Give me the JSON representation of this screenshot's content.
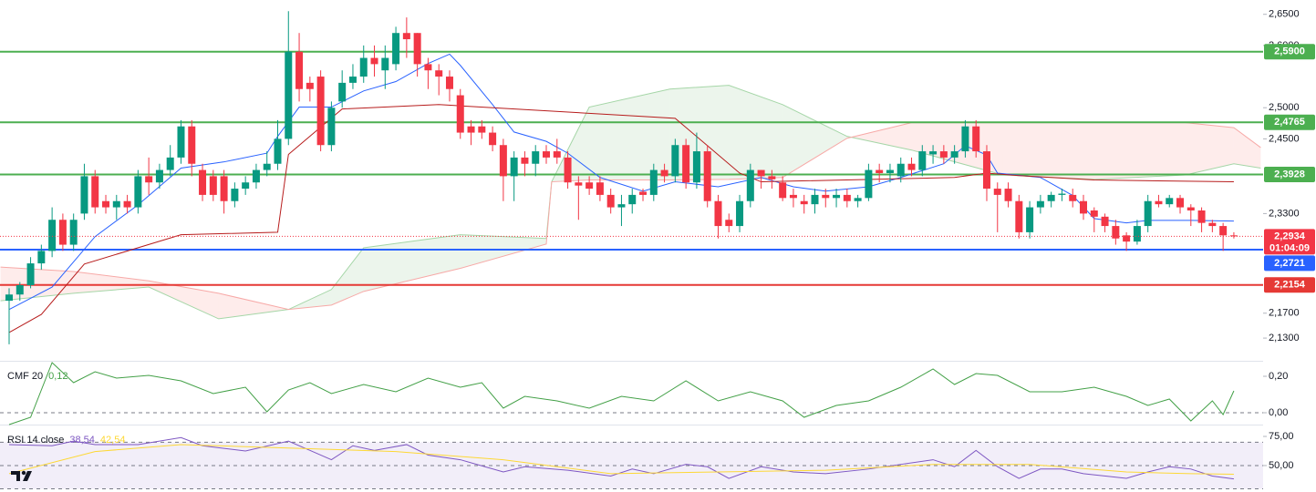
{
  "chart_data": [
    {
      "type": "candlestick",
      "ylim": [
        2.095,
        2.673
      ],
      "yticks": [
        {
          "value": 2.65,
          "label": "2,6500"
        },
        {
          "value": 2.6,
          "label": "2,6000"
        },
        {
          "value": 2.5,
          "label": "2,5000"
        },
        {
          "value": 2.45,
          "label": "2,4500"
        },
        {
          "value": 2.33,
          "label": "2,3300"
        },
        {
          "value": 2.17,
          "label": "2,1700"
        },
        {
          "value": 2.13,
          "label": "2,1300"
        }
      ],
      "up_color": "#089981",
      "down_color": "#f23645",
      "open": [
        2.19,
        2.2,
        2.215,
        2.25,
        2.27,
        2.32,
        2.28,
        2.33,
        2.39,
        2.35,
        2.34,
        2.35,
        2.34,
        2.39,
        2.38,
        2.4,
        2.42,
        2.47,
        2.4,
        2.39,
        2.39,
        2.35,
        2.37,
        2.38,
        2.4,
        2.41,
        2.45,
        2.59,
        2.54,
        2.55,
        2.44,
        2.51,
        2.54,
        2.55,
        2.58,
        2.56,
        2.57,
        2.62,
        2.62,
        2.57,
        2.56,
        2.55,
        2.52,
        2.47,
        2.47,
        2.46,
        2.44,
        2.39,
        2.42,
        2.41,
        2.43,
        2.43,
        2.42,
        2.38,
        2.38,
        2.38,
        2.36,
        2.34,
        2.345,
        2.365,
        2.36,
        2.4,
        2.39,
        2.44,
        2.38,
        2.43,
        2.35,
        2.32,
        2.31,
        2.35,
        2.4,
        2.39,
        2.38,
        2.36,
        2.35,
        2.345,
        2.36,
        2.355,
        2.36,
        2.35,
        2.355,
        2.4,
        2.395,
        2.39,
        2.41,
        2.4,
        2.425,
        2.43,
        2.42,
        2.43,
        2.47,
        2.43,
        2.37,
        2.37,
        2.35,
        2.3,
        2.34,
        2.35,
        2.36,
        2.36,
        2.35,
        2.335,
        2.325,
        2.31,
        2.295,
        2.285,
        2.31,
        2.35,
        2.345,
        2.355,
        2.34,
        2.335,
        2.315,
        2.31,
        2.295
      ],
      "high": [
        2.21,
        2.22,
        2.26,
        2.28,
        2.34,
        2.33,
        2.33,
        2.41,
        2.4,
        2.36,
        2.36,
        2.36,
        2.4,
        2.42,
        2.41,
        2.44,
        2.48,
        2.48,
        2.41,
        2.4,
        2.4,
        2.38,
        2.39,
        2.41,
        2.43,
        2.48,
        2.655,
        2.62,
        2.55,
        2.56,
        2.51,
        2.56,
        2.57,
        2.6,
        2.6,
        2.6,
        2.63,
        2.645,
        2.62,
        2.58,
        2.57,
        2.56,
        2.53,
        2.48,
        2.48,
        2.47,
        2.45,
        2.43,
        2.43,
        2.44,
        2.44,
        2.45,
        2.43,
        2.39,
        2.39,
        2.39,
        2.37,
        2.36,
        2.37,
        2.37,
        2.41,
        2.41,
        2.45,
        2.45,
        2.46,
        2.44,
        2.36,
        2.33,
        2.36,
        2.41,
        2.4,
        2.4,
        2.39,
        2.37,
        2.36,
        2.37,
        2.37,
        2.37,
        2.37,
        2.36,
        2.41,
        2.41,
        2.41,
        2.42,
        2.42,
        2.44,
        2.44,
        2.44,
        2.44,
        2.48,
        2.48,
        2.44,
        2.38,
        2.38,
        2.36,
        2.35,
        2.36,
        2.365,
        2.37,
        2.37,
        2.36,
        2.34,
        2.33,
        2.32,
        2.3,
        2.32,
        2.36,
        2.36,
        2.36,
        2.36,
        2.345,
        2.34,
        2.32,
        2.315,
        2.3
      ],
      "low": [
        2.12,
        2.19,
        2.21,
        2.24,
        2.26,
        2.27,
        2.27,
        2.32,
        2.33,
        2.33,
        2.32,
        2.33,
        2.33,
        2.36,
        2.37,
        2.39,
        2.41,
        2.39,
        2.35,
        2.35,
        2.33,
        2.34,
        2.36,
        2.37,
        2.39,
        2.4,
        2.44,
        2.51,
        2.51,
        2.43,
        2.43,
        2.5,
        2.53,
        2.54,
        2.55,
        2.53,
        2.56,
        2.58,
        2.55,
        2.53,
        2.52,
        2.51,
        2.45,
        2.44,
        2.45,
        2.43,
        2.35,
        2.35,
        2.39,
        2.39,
        2.41,
        2.41,
        2.37,
        2.32,
        2.36,
        2.35,
        2.33,
        2.31,
        2.33,
        2.35,
        2.35,
        2.38,
        2.38,
        2.37,
        2.37,
        2.34,
        2.29,
        2.3,
        2.3,
        2.34,
        2.37,
        2.37,
        2.35,
        2.34,
        2.33,
        2.33,
        2.34,
        2.34,
        2.34,
        2.34,
        2.35,
        2.38,
        2.38,
        2.38,
        2.39,
        2.39,
        2.41,
        2.41,
        2.41,
        2.42,
        2.42,
        2.35,
        2.3,
        2.34,
        2.29,
        2.29,
        2.33,
        2.34,
        2.35,
        2.34,
        2.32,
        2.3,
        2.3,
        2.28,
        2.27,
        2.28,
        2.3,
        2.34,
        2.34,
        2.33,
        2.31,
        2.3,
        2.3,
        2.27,
        2.29
      ],
      "close": [
        2.2,
        2.215,
        2.25,
        2.27,
        2.32,
        2.28,
        2.32,
        2.39,
        2.34,
        2.34,
        2.35,
        2.34,
        2.39,
        2.38,
        2.4,
        2.42,
        2.47,
        2.41,
        2.36,
        2.36,
        2.35,
        2.37,
        2.38,
        2.4,
        2.41,
        2.45,
        2.59,
        2.53,
        2.53,
        2.44,
        2.5,
        2.54,
        2.55,
        2.58,
        2.57,
        2.58,
        2.62,
        2.61,
        2.57,
        2.56,
        2.55,
        2.53,
        2.46,
        2.46,
        2.46,
        2.44,
        2.39,
        2.42,
        2.41,
        2.43,
        2.42,
        2.42,
        2.38,
        2.375,
        2.37,
        2.36,
        2.34,
        2.345,
        2.36,
        2.36,
        2.4,
        2.39,
        2.44,
        2.38,
        2.43,
        2.35,
        2.31,
        2.31,
        2.35,
        2.4,
        2.39,
        2.385,
        2.355,
        2.355,
        2.345,
        2.36,
        2.355,
        2.36,
        2.35,
        2.355,
        2.4,
        2.395,
        2.4,
        2.41,
        2.4,
        2.43,
        2.43,
        2.42,
        2.43,
        2.47,
        2.43,
        2.37,
        2.36,
        2.35,
        2.3,
        2.34,
        2.35,
        2.36,
        2.362,
        2.35,
        2.33,
        2.325,
        2.31,
        2.29,
        2.285,
        2.31,
        2.35,
        2.345,
        2.355,
        2.34,
        2.335,
        2.315,
        2.31,
        2.295,
        2.2934
      ],
      "lines": [
        {
          "color": "#2962ff",
          "x": [
            0,
            4,
            8,
            12,
            16,
            20,
            24,
            25,
            27,
            30,
            33,
            36,
            39,
            41,
            42,
            45,
            47,
            50,
            52,
            55,
            59,
            62,
            66,
            70,
            73,
            76,
            80,
            83,
            87,
            89,
            91,
            92,
            96,
            99,
            101,
            104,
            106,
            110,
            114
          ],
          "values": [
            2.176,
            2.212,
            2.293,
            2.344,
            2.403,
            2.413,
            2.427,
            2.454,
            2.501,
            2.501,
            2.527,
            2.542,
            2.571,
            2.586,
            2.568,
            2.505,
            2.461,
            2.446,
            2.427,
            2.388,
            2.366,
            2.381,
            2.373,
            2.388,
            2.373,
            2.366,
            2.373,
            2.388,
            2.41,
            2.439,
            2.424,
            2.395,
            2.388,
            2.359,
            2.322,
            2.315,
            2.319,
            2.319,
            2.318
          ]
        },
        {
          "color": "#b71c1c",
          "x": [
            0,
            3,
            7,
            16,
            25,
            26,
            31,
            40,
            62,
            65,
            68,
            70,
            88,
            91,
            94,
            101,
            114
          ],
          "values": [
            2.139,
            2.168,
            2.249,
            2.296,
            2.3,
            2.425,
            2.498,
            2.505,
            2.483,
            2.439,
            2.395,
            2.381,
            2.388,
            2.395,
            2.391,
            2.384,
            2.381
          ]
        }
      ],
      "cloud": {
        "x": [
          -0.8,
          6,
          13,
          19.5,
          26,
          30,
          33,
          42,
          50,
          50.5,
          54,
          61.5,
          67,
          72,
          78,
          84,
          92.5,
          101,
          109.5,
          114,
          116.5
        ],
        "span_a": [
          2.19,
          2.202,
          2.212,
          2.161,
          2.176,
          2.208,
          2.275,
          2.296,
          2.29,
          2.381,
          2.501,
          2.53,
          2.536,
          2.505,
          2.454,
          2.432,
          2.392,
          2.385,
          2.392,
          2.41,
          2.403
        ],
        "span_b": [
          2.244,
          2.237,
          2.222,
          2.202,
          2.176,
          2.183,
          2.205,
          2.242,
          2.281,
          2.381,
          2.384,
          2.384,
          2.385,
          2.388,
          2.451,
          2.476,
          2.476,
          2.476,
          2.476,
          2.468,
          2.436
        ],
        "a_color": "#a5d6a7",
        "b_color": "#f7a9a7",
        "up_fill": "rgba(67,160,71,0.10)",
        "down_fill": "rgba(244,67,54,0.10)"
      },
      "levels": [
        {
          "value": 2.59,
          "label": "2,5900",
          "color": "#4caf50"
        },
        {
          "value": 2.4765,
          "label": "2,4765",
          "color": "#4caf50"
        },
        {
          "value": 2.3928,
          "label": "2,3928",
          "color": "#4caf50"
        },
        {
          "value": 2.2721,
          "label": "2,2721",
          "color": "#2962ff"
        },
        {
          "value": 2.2154,
          "label": "2,2154",
          "color": "#e53935"
        }
      ],
      "last_price": {
        "value": 2.2934,
        "label": "2,2934",
        "countdown": "01:04:09",
        "color": "#f23645"
      }
    },
    {
      "type": "line",
      "title": "CMF 20",
      "ylim": [
        -0.06,
        0.275
      ],
      "yticks": [
        {
          "value": 0.2,
          "label": "0,20"
        },
        {
          "value": 0,
          "label": "0,00"
        }
      ],
      "hlines": [
        0
      ],
      "series": [
        {
          "color": "#43a047",
          "x": [
            0,
            2,
            4,
            6,
            8,
            10,
            13,
            16,
            19,
            22,
            24,
            26,
            28,
            30,
            33,
            36,
            39,
            42,
            44,
            46,
            48,
            51,
            54,
            57,
            60,
            63,
            66,
            69,
            72,
            74,
            77,
            80,
            83,
            86,
            88,
            90,
            92,
            95,
            98,
            101,
            104,
            106,
            108,
            110,
            112,
            113,
            114
          ],
          "values": [
            -0.065,
            -0.025,
            0.275,
            0.165,
            0.225,
            0.19,
            0.205,
            0.175,
            0.105,
            0.14,
            0.005,
            0.125,
            0.165,
            0.105,
            0.155,
            0.115,
            0.19,
            0.14,
            0.165,
            0.025,
            0.09,
            0.065,
            0.025,
            0.09,
            0.065,
            0.175,
            0.065,
            0.115,
            0.065,
            -0.025,
            0.04,
            0.065,
            0.14,
            0.24,
            0.155,
            0.215,
            0.205,
            0.115,
            0.115,
            0.14,
            0.09,
            0.04,
            0.075,
            -0.045,
            0.065,
            -0.01,
            0.12
          ],
          "last_label": "0,12"
        }
      ]
    },
    {
      "type": "line",
      "title": "RSI 14 close",
      "ylim": [
        27.3,
        83.6
      ],
      "yticks": [
        {
          "value": 75,
          "label": "75,00"
        },
        {
          "value": 50,
          "label": "50,00"
        }
      ],
      "band": [
        30,
        70
      ],
      "band_color": "rgba(126,87,194,0.10)",
      "hlines": [
        70,
        50,
        30
      ],
      "series": [
        {
          "color": "#7e57c2",
          "x": [
            0,
            4,
            6,
            8,
            12,
            16,
            18,
            22,
            26,
            28,
            30,
            32,
            34,
            37,
            39,
            42,
            46,
            48,
            52,
            56,
            58,
            60,
            63,
            65,
            67,
            70,
            73,
            76,
            80,
            83,
            86,
            88,
            90,
            92,
            94,
            96,
            98,
            100,
            104,
            106,
            108,
            110,
            112,
            114
          ],
          "values": [
            68,
            67,
            71,
            68,
            68,
            74,
            67,
            62.5,
            71,
            63,
            55,
            67,
            63,
            68,
            59,
            55,
            44.5,
            49,
            46,
            41,
            47,
            43,
            51,
            49,
            39,
            49,
            44.5,
            43,
            47,
            51,
            55,
            49,
            63,
            49,
            39,
            47,
            47,
            43,
            39,
            44.5,
            49,
            47,
            41,
            38.54
          ],
          "last_label": "38,54"
        },
        {
          "color": "#fdd835",
          "x": [
            0,
            8,
            16,
            26,
            36,
            46,
            56,
            66,
            76,
            86,
            95,
            104,
            110,
            114
          ],
          "values": [
            43,
            62,
            68,
            65,
            62,
            55,
            43,
            44.5,
            46,
            51,
            51,
            44.5,
            43,
            42.54
          ],
          "last_label": "42,54"
        }
      ]
    }
  ]
}
